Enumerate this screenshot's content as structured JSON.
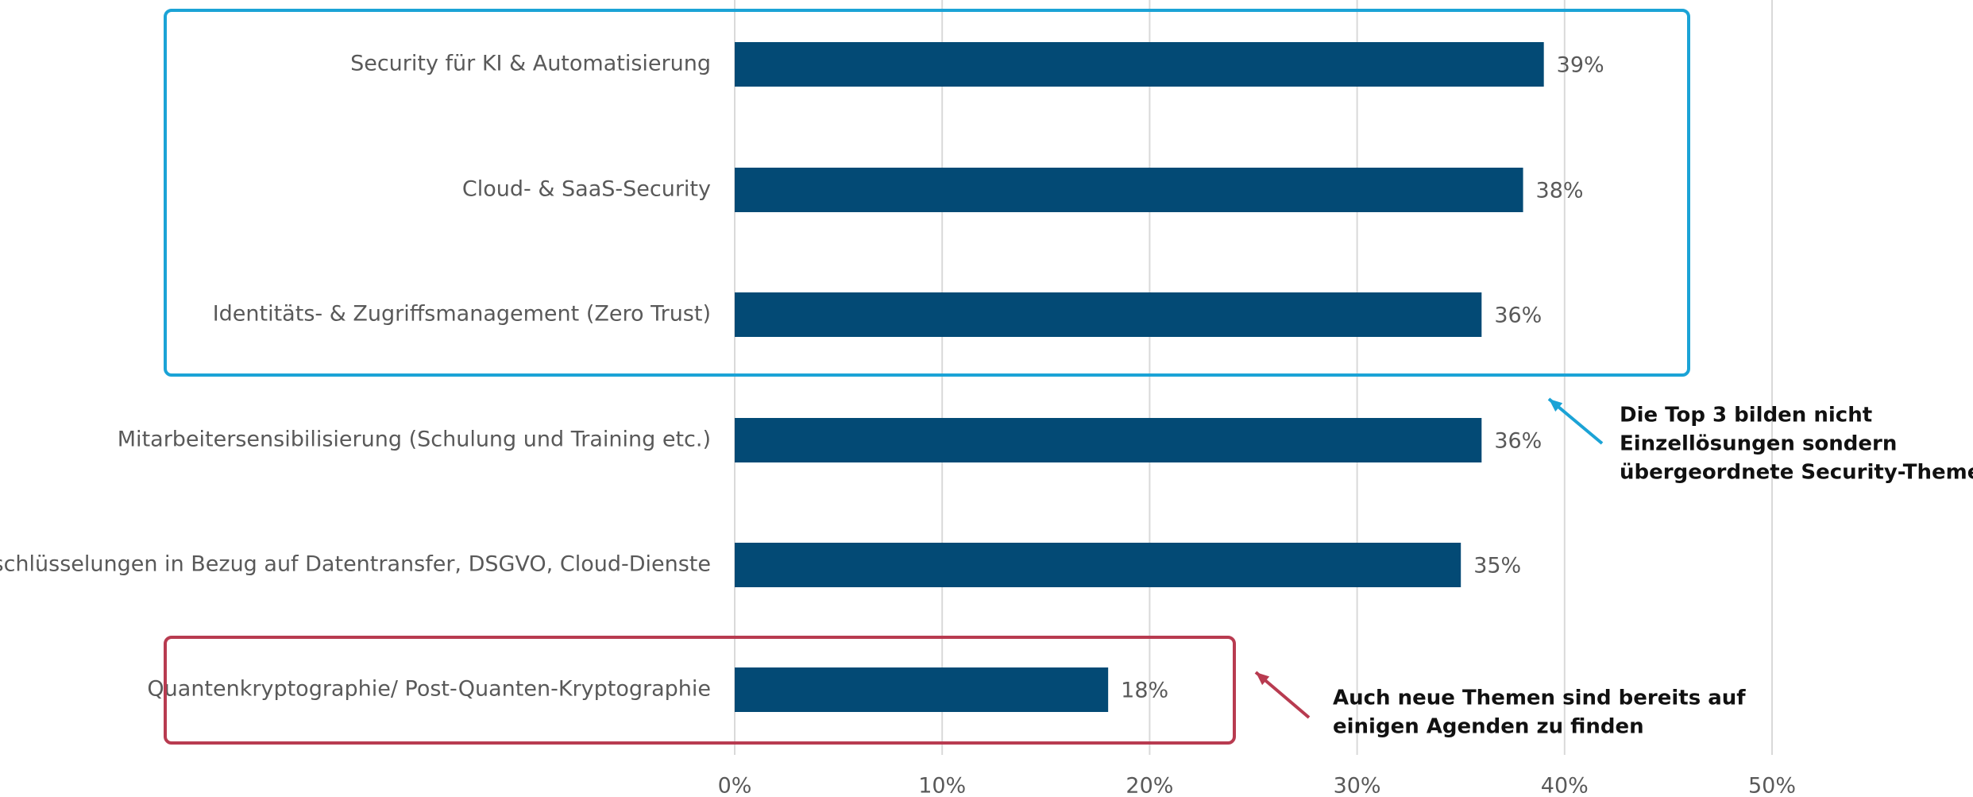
{
  "chart_data": {
    "type": "barh",
    "categories": [
      "Security für KI & Automatisierung",
      "Cloud- & SaaS-Security",
      "Identitäts- & Zugriffsmanagement (Zero Trust)",
      "Mitarbeitersensibilisierung (Schulung und Training etc.)",
      "Verschlüsselungen in Bezug auf Datentransfer, DSGVO, Cloud-Dienste",
      "Quantenkryptographie/ Post-Quanten-Kryptographie"
    ],
    "values": [
      39,
      38,
      36,
      36,
      35,
      18
    ],
    "value_labels": [
      "39%",
      "38%",
      "36%",
      "36%",
      "35%",
      "18%"
    ],
    "color": "#034a75",
    "xlim": [
      0,
      50
    ],
    "xticks": [
      {
        "value": 0,
        "label": "0%"
      },
      {
        "value": 10,
        "label": "10%"
      },
      {
        "value": 20,
        "label": "20%"
      },
      {
        "value": 30,
        "label": "30%"
      },
      {
        "value": 40,
        "label": "40%"
      },
      {
        "value": 50,
        "label": "50%"
      }
    ],
    "grid": true,
    "annotations": [
      {
        "lines": [
          "Die Top 3 bilden nicht",
          "Einzellösungen sondern",
          "übergeordnete Security-Themen"
        ],
        "color": "#1ba3d6"
      },
      {
        "lines": [
          "Auch neue Themen sind bereits auf",
          "einigen Agenden zu finden"
        ],
        "color": "#b83b50"
      }
    ]
  }
}
